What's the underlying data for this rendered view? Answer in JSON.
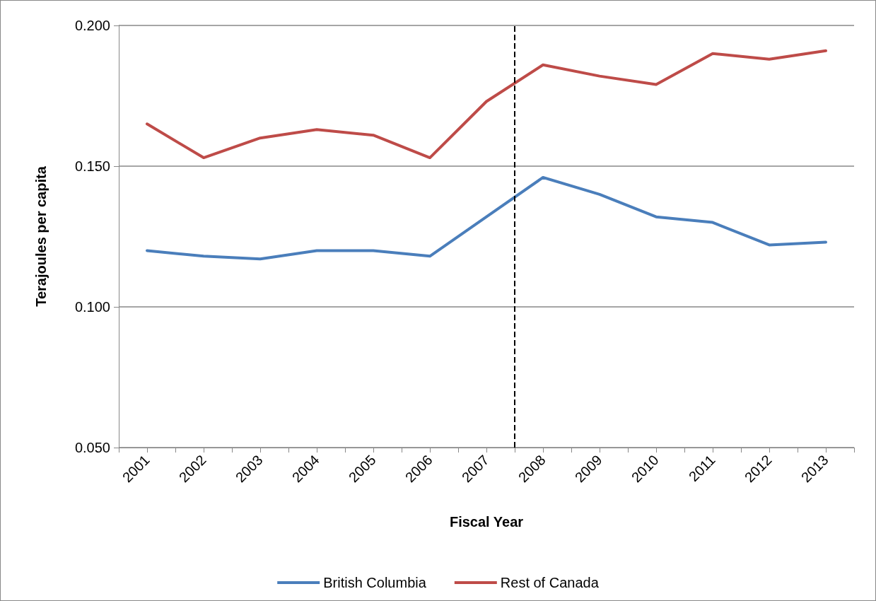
{
  "chart_data": {
    "type": "line",
    "xlabel": "Fiscal Year",
    "ylabel": "Terajoules per capita",
    "x": [
      2001,
      2002,
      2003,
      2004,
      2005,
      2006,
      2007,
      2008,
      2009,
      2010,
      2011,
      2012,
      2013
    ],
    "series": [
      {
        "name": "British Columbia",
        "color": "#4a7ebb",
        "values": [
          0.12,
          0.118,
          0.117,
          0.12,
          0.12,
          0.118,
          0.132,
          0.146,
          0.14,
          0.132,
          0.13,
          0.122,
          0.123
        ]
      },
      {
        "name": "Rest of Canada",
        "color": "#be4b48",
        "values": [
          0.165,
          0.153,
          0.16,
          0.163,
          0.161,
          0.153,
          0.173,
          0.186,
          0.182,
          0.179,
          0.19,
          0.188,
          0.191
        ]
      }
    ],
    "xlim": [
      2000.5,
      2013.5
    ],
    "xticks": [
      {
        "value": 2000.5,
        "label": null
      },
      2001,
      {
        "value": 2001.5,
        "label": null
      },
      2002,
      {
        "value": 2002.5,
        "label": null
      },
      2003,
      {
        "value": 2003.5,
        "label": null
      },
      2004,
      {
        "value": 2004.5,
        "label": null
      },
      2005,
      {
        "value": 2005.5,
        "label": null
      },
      2006,
      {
        "value": 2006.5,
        "label": null
      },
      2007,
      {
        "value": 2007.5,
        "label": null
      },
      2008,
      {
        "value": 2008.5,
        "label": null
      },
      2009,
      {
        "value": 2009.5,
        "label": null
      },
      2010,
      {
        "value": 2010.5,
        "label": null
      },
      2011,
      {
        "value": 2011.5,
        "label": null
      },
      2012,
      {
        "value": 2012.5,
        "label": null
      },
      2013,
      {
        "value": 2013.5,
        "label": null
      }
    ],
    "ylim": [
      0.05,
      0.2
    ],
    "yticks": [
      {
        "value": 0.05,
        "label": "0.050"
      },
      {
        "value": 0.1,
        "label": "0.100"
      },
      {
        "value": 0.15,
        "label": "0.150"
      },
      {
        "value": 0.2,
        "label": "0.200"
      }
    ],
    "ref_lines": [
      {
        "axis": "x",
        "value": 2007.5,
        "color": "#000000",
        "line_style": "dashed"
      }
    ],
    "grid": "y",
    "legend": "bottom",
    "marker": "none",
    "line_style": "solid"
  }
}
